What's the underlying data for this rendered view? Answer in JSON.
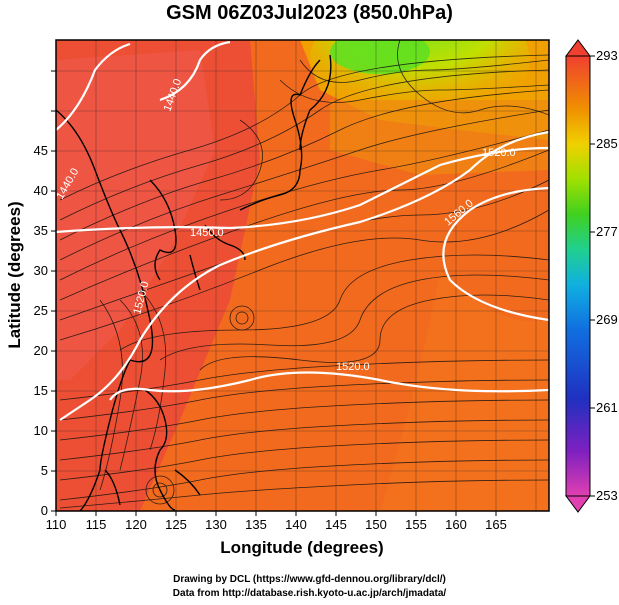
{
  "title": "GSM 06Z03Jul2023 (850.0hPa)",
  "xlabel": "Longitude (degrees)",
  "ylabel": "Latitude  (degrees)",
  "x_ticks": [
    "110",
    "115",
    "120",
    "125",
    "130",
    "135",
    "140",
    "145",
    "150",
    "155",
    "160",
    "165"
  ],
  "y_ticks": [
    "0",
    "5",
    "10",
    "15",
    "20",
    "25",
    "30",
    "35",
    "40",
    "45"
  ],
  "colorbar": {
    "labels": [
      "293",
      "285",
      "277",
      "269",
      "261",
      "253"
    ],
    "min": 253,
    "max": 293,
    "colors": [
      "#e040b0",
      "#7020c0",
      "#2030c0",
      "#1070e0",
      "#10b0e0",
      "#20d090",
      "#40d020",
      "#a0e000",
      "#e0e000",
      "#f0a000",
      "#f06000",
      "#f04030"
    ]
  },
  "contour_labels": [
    "1440.0",
    "1440.0",
    "1450.0",
    "1520.0",
    "1520.0",
    "1520.0",
    "1560.0"
  ],
  "credit_line1": "Drawing by DCL (https://www.gfd-dennou.org/library/dcl/)",
  "credit_line2": "Data from http://database.rish.kyoto-u.ac.jp/arch/jmadata/"
}
